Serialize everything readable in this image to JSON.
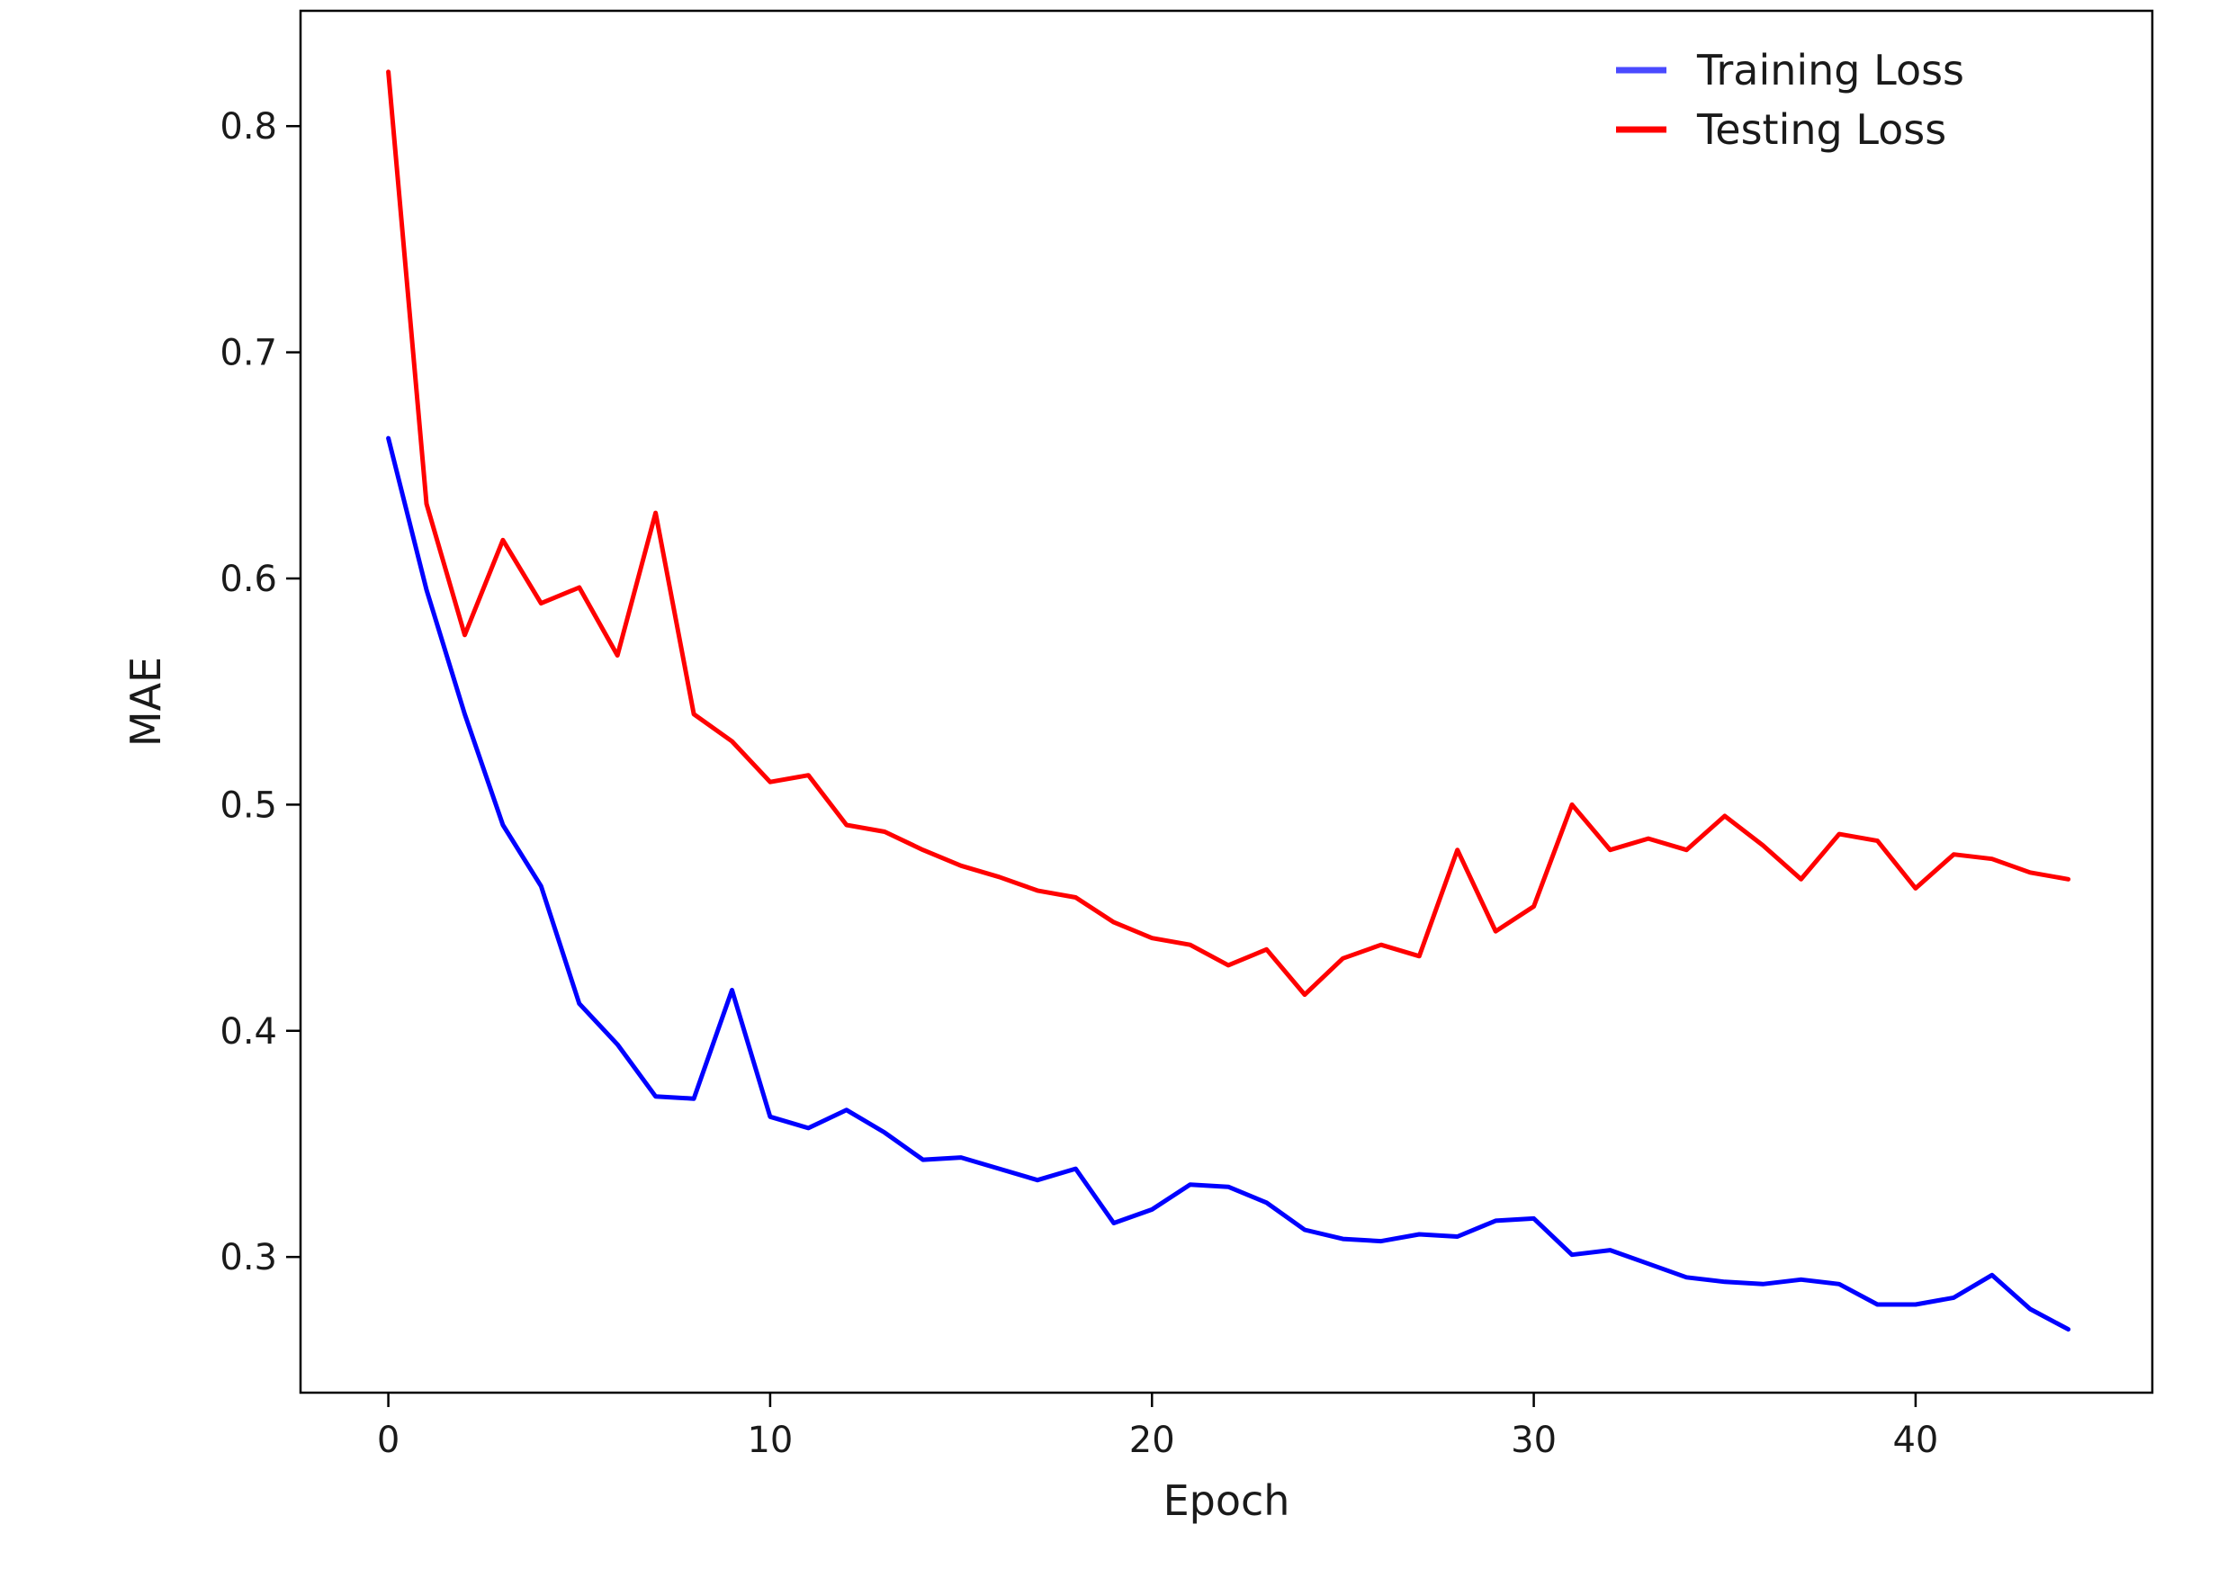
{
  "chart_data": {
    "type": "line",
    "title": "",
    "xlabel": "Epoch",
    "ylabel": "MAE",
    "xlim": [
      -2.3,
      46.2
    ],
    "ylim": [
      0.24,
      0.851
    ],
    "xticks": [
      0,
      10,
      20,
      30,
      40
    ],
    "yticks": [
      0.3,
      0.4,
      0.5,
      0.6,
      0.7,
      0.8
    ],
    "xtick_labels": [
      "0",
      "10",
      "20",
      "30",
      "40"
    ],
    "ytick_labels": [
      "0.3",
      "0.4",
      "0.5",
      "0.6",
      "0.7",
      "0.8"
    ],
    "grid": false,
    "legend_position": "top-right",
    "x": [
      0,
      1,
      2,
      3,
      4,
      5,
      6,
      7,
      8,
      9,
      10,
      11,
      12,
      13,
      14,
      15,
      16,
      17,
      18,
      19,
      20,
      21,
      22,
      23,
      24,
      25,
      26,
      27,
      28,
      29,
      30,
      31,
      32,
      33,
      34,
      35,
      36,
      37,
      38,
      39,
      40,
      41,
      42,
      43,
      44
    ],
    "series": [
      {
        "name": "Training Loss",
        "color": "#0000ff",
        "legend_color": "#4a4aff",
        "values": [
          0.662,
          0.595,
          0.54,
          0.491,
          0.464,
          0.412,
          0.394,
          0.371,
          0.37,
          0.418,
          0.362,
          0.357,
          0.365,
          0.355,
          0.343,
          0.344,
          0.339,
          0.334,
          0.339,
          0.315,
          0.321,
          0.332,
          0.331,
          0.324,
          0.312,
          0.308,
          0.307,
          0.31,
          0.309,
          0.316,
          0.317,
          0.301,
          0.303,
          0.297,
          0.291,
          0.289,
          0.288,
          0.29,
          0.288,
          0.279,
          0.279,
          0.282,
          0.292,
          0.277,
          0.268
        ]
      },
      {
        "name": "Testing Loss",
        "color": "#ff0000",
        "legend_color": "#ff0000",
        "values": [
          0.824,
          0.633,
          0.575,
          0.617,
          0.589,
          0.596,
          0.566,
          0.629,
          0.54,
          0.528,
          0.51,
          0.513,
          0.491,
          0.488,
          0.48,
          0.473,
          0.468,
          0.462,
          0.459,
          0.448,
          0.441,
          0.438,
          0.429,
          0.436,
          0.416,
          0.432,
          0.438,
          0.433,
          0.48,
          0.444,
          0.455,
          0.5,
          0.48,
          0.485,
          0.48,
          0.495,
          0.482,
          0.467,
          0.487,
          0.484,
          0.463,
          0.478,
          0.476,
          0.47,
          0.467
        ]
      }
    ]
  }
}
